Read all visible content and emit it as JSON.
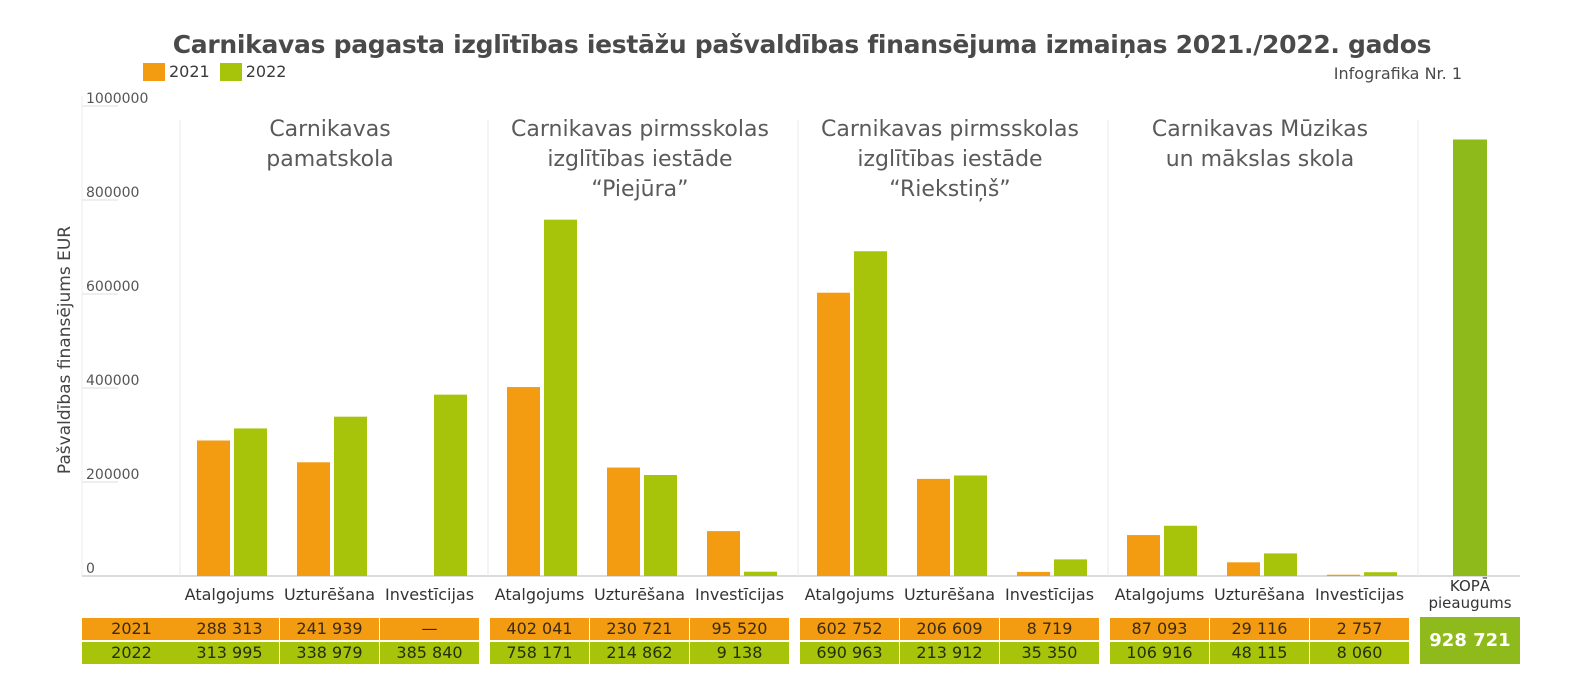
{
  "title": "Carnikavas pagasta izglītības iestāžu pašvaldības finansējuma izmaiņas 2021./2022. gados",
  "subtitle": "Infografika Nr. 1",
  "legend": [
    {
      "label": "2021",
      "color": "#f39c12"
    },
    {
      "label": "2022",
      "color": "#a8c40a"
    }
  ],
  "colors": {
    "y2021": "#f39c12",
    "y2022": "#a8c40a",
    "total": "#8fba1c"
  },
  "chart_data": {
    "type": "bar",
    "ylabel": "Pašvaldības finansējums EUR",
    "ylim": [
      0,
      1000000
    ],
    "yticks": [
      "0",
      "200000",
      "400000",
      "600000",
      "800000",
      "1000000"
    ],
    "groups": [
      {
        "name_lines": [
          "Carnikavas",
          "pamatskola"
        ],
        "categories": [
          "Atalgojums",
          "Uzturēšana",
          "Investīcijas"
        ],
        "values2021": [
          288313,
          241939,
          0
        ],
        "values2022": [
          313995,
          338979,
          385840
        ],
        "labels2021": [
          "288 313",
          "241 939",
          "—"
        ],
        "labels2022": [
          "313 995",
          "338 979",
          "385 840"
        ]
      },
      {
        "name_lines": [
          "Carnikavas pirmsskolas",
          "izglītības iestāde",
          "“Piejūra”"
        ],
        "categories": [
          "Atalgojums",
          "Uzturēšana",
          "Investīcijas"
        ],
        "values2021": [
          402041,
          230721,
          95520
        ],
        "values2022": [
          758171,
          214862,
          9138
        ],
        "labels2021": [
          "402 041",
          "230 721",
          "95 520"
        ],
        "labels2022": [
          "758 171",
          "214 862",
          "9 138"
        ]
      },
      {
        "name_lines": [
          "Carnikavas pirmsskolas",
          "izglītības iestāde",
          "“Riekstiņš”"
        ],
        "categories": [
          "Atalgojums",
          "Uzturēšana",
          "Investīcijas"
        ],
        "values2021": [
          602752,
          206609,
          8719
        ],
        "values2022": [
          690963,
          213912,
          35350
        ],
        "labels2021": [
          "602 752",
          "206 609",
          "8 719"
        ],
        "labels2022": [
          "690 963",
          "213 912",
          "35 350"
        ]
      },
      {
        "name_lines": [
          "Carnikavas Mūzikas",
          "un mākslas skola"
        ],
        "categories": [
          "Atalgojums",
          "Uzturēšana",
          "Investīcijas"
        ],
        "values2021": [
          87093,
          29116,
          2757
        ],
        "values2022": [
          106916,
          48115,
          8060
        ],
        "labels2021": [
          "87 093",
          "29 116",
          "2 757"
        ],
        "labels2022": [
          "106 916",
          "48 115",
          "8 060"
        ]
      }
    ],
    "total": {
      "label_lines": [
        "KOPĀ",
        "pieaugums"
      ],
      "value": 928721,
      "value_label": "928 721"
    },
    "row_labels": [
      "2021",
      "2022"
    ]
  }
}
